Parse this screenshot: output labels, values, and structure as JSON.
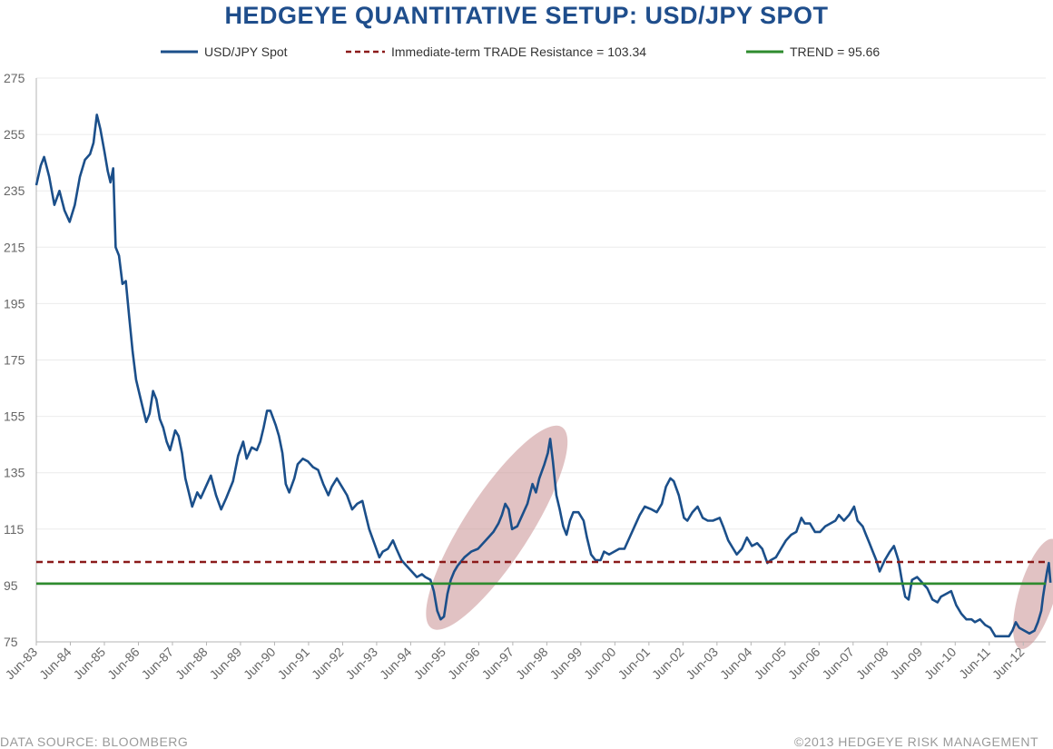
{
  "chart_data": {
    "type": "line",
    "title": "HEDGEYE QUANTITATIVE SETUP: USD/JPY SPOT",
    "xlabel": "",
    "ylabel": "",
    "ylim": [
      75,
      275
    ],
    "y_ticks": [
      75,
      95,
      115,
      135,
      155,
      175,
      195,
      215,
      235,
      255,
      275
    ],
    "x_range": [
      1983.42,
      2013.08
    ],
    "x_tick_labels": [
      "Jun-83",
      "Jun-84",
      "Jun-85",
      "Jun-86",
      "Jun-87",
      "Jun-88",
      "Jun-89",
      "Jun-90",
      "Jun-91",
      "Jun-92",
      "Jun-93",
      "Jun-94",
      "Jun-95",
      "Jun-96",
      "Jun-97",
      "Jun-98",
      "Jun-99",
      "Jun-00",
      "Jun-01",
      "Jun-02",
      "Jun-03",
      "Jun-04",
      "Jun-05",
      "Jun-06",
      "Jun-07",
      "Jun-08",
      "Jun-09",
      "Jun-10",
      "Jun-11",
      "Jun-12"
    ],
    "grid": true,
    "legend_position": "top",
    "series": [
      {
        "name": "USD/JPY Spot",
        "color": "#1b4f8a",
        "style": "solid",
        "points": [
          [
            1983.42,
            237
          ],
          [
            1983.55,
            244
          ],
          [
            1983.65,
            247
          ],
          [
            1983.8,
            240
          ],
          [
            1983.95,
            230
          ],
          [
            1984.1,
            235
          ],
          [
            1984.25,
            228
          ],
          [
            1984.4,
            224
          ],
          [
            1984.55,
            230
          ],
          [
            1984.7,
            240
          ],
          [
            1984.85,
            246
          ],
          [
            1985.0,
            248
          ],
          [
            1985.1,
            252
          ],
          [
            1985.2,
            262
          ],
          [
            1985.3,
            257
          ],
          [
            1985.42,
            249
          ],
          [
            1985.52,
            242
          ],
          [
            1985.6,
            238
          ],
          [
            1985.68,
            243
          ],
          [
            1985.75,
            215
          ],
          [
            1985.85,
            212
          ],
          [
            1985.95,
            202
          ],
          [
            1986.05,
            203
          ],
          [
            1986.15,
            190
          ],
          [
            1986.25,
            178
          ],
          [
            1986.35,
            168
          ],
          [
            1986.45,
            163
          ],
          [
            1986.55,
            158
          ],
          [
            1986.65,
            153
          ],
          [
            1986.75,
            156
          ],
          [
            1986.85,
            164
          ],
          [
            1986.95,
            161
          ],
          [
            1987.05,
            154
          ],
          [
            1987.15,
            151
          ],
          [
            1987.25,
            146
          ],
          [
            1987.35,
            143
          ],
          [
            1987.5,
            150
          ],
          [
            1987.6,
            148
          ],
          [
            1987.7,
            142
          ],
          [
            1987.8,
            133
          ],
          [
            1987.9,
            128
          ],
          [
            1988.0,
            123
          ],
          [
            1988.15,
            128
          ],
          [
            1988.25,
            126
          ],
          [
            1988.4,
            130
          ],
          [
            1988.55,
            134
          ],
          [
            1988.7,
            127
          ],
          [
            1988.85,
            122
          ],
          [
            1989.0,
            126
          ],
          [
            1989.2,
            132
          ],
          [
            1989.35,
            141
          ],
          [
            1989.5,
            146
          ],
          [
            1989.6,
            140
          ],
          [
            1989.75,
            144
          ],
          [
            1989.9,
            143
          ],
          [
            1990.0,
            146
          ],
          [
            1990.1,
            151
          ],
          [
            1990.2,
            157
          ],
          [
            1990.3,
            157
          ],
          [
            1990.45,
            152
          ],
          [
            1990.55,
            148
          ],
          [
            1990.65,
            142
          ],
          [
            1990.75,
            131
          ],
          [
            1990.85,
            128
          ],
          [
            1991.0,
            133
          ],
          [
            1991.1,
            138
          ],
          [
            1991.25,
            140
          ],
          [
            1991.4,
            139
          ],
          [
            1991.55,
            137
          ],
          [
            1991.7,
            136
          ],
          [
            1991.85,
            131
          ],
          [
            1992.0,
            127
          ],
          [
            1992.1,
            130
          ],
          [
            1992.25,
            133
          ],
          [
            1992.4,
            130
          ],
          [
            1992.55,
            127
          ],
          [
            1992.7,
            122
          ],
          [
            1992.85,
            124
          ],
          [
            1993.0,
            125
          ],
          [
            1993.1,
            120
          ],
          [
            1993.2,
            115
          ],
          [
            1993.35,
            110
          ],
          [
            1993.5,
            105
          ],
          [
            1993.6,
            107
          ],
          [
            1993.75,
            108
          ],
          [
            1993.9,
            111
          ],
          [
            1994.0,
            108
          ],
          [
            1994.15,
            104
          ],
          [
            1994.3,
            102
          ],
          [
            1994.45,
            100
          ],
          [
            1994.6,
            98
          ],
          [
            1994.75,
            99
          ],
          [
            1994.85,
            98
          ],
          [
            1995.0,
            97
          ],
          [
            1995.1,
            93
          ],
          [
            1995.2,
            86
          ],
          [
            1995.3,
            83
          ],
          [
            1995.4,
            84
          ],
          [
            1995.5,
            92
          ],
          [
            1995.6,
            97
          ],
          [
            1995.7,
            100
          ],
          [
            1995.8,
            102
          ],
          [
            1996.0,
            105
          ],
          [
            1996.2,
            107
          ],
          [
            1996.4,
            108
          ],
          [
            1996.55,
            110
          ],
          [
            1996.7,
            112
          ],
          [
            1996.85,
            114
          ],
          [
            1997.0,
            117
          ],
          [
            1997.1,
            120
          ],
          [
            1997.2,
            124
          ],
          [
            1997.3,
            122
          ],
          [
            1997.4,
            115
          ],
          [
            1997.55,
            116
          ],
          [
            1997.7,
            120
          ],
          [
            1997.85,
            124
          ],
          [
            1998.0,
            131
          ],
          [
            1998.1,
            128
          ],
          [
            1998.2,
            133
          ],
          [
            1998.35,
            138
          ],
          [
            1998.45,
            142
          ],
          [
            1998.52,
            147
          ],
          [
            1998.6,
            139
          ],
          [
            1998.7,
            127
          ],
          [
            1998.8,
            122
          ],
          [
            1998.9,
            116
          ],
          [
            1999.0,
            113
          ],
          [
            1999.1,
            118
          ],
          [
            1999.2,
            121
          ],
          [
            1999.35,
            121
          ],
          [
            1999.5,
            118
          ],
          [
            1999.6,
            112
          ],
          [
            1999.72,
            106
          ],
          [
            1999.85,
            104
          ],
          [
            2000.0,
            104
          ],
          [
            2000.1,
            107
          ],
          [
            2000.25,
            106
          ],
          [
            2000.4,
            107
          ],
          [
            2000.55,
            108
          ],
          [
            2000.7,
            108
          ],
          [
            2000.85,
            112
          ],
          [
            2001.0,
            116
          ],
          [
            2001.15,
            120
          ],
          [
            2001.3,
            123
          ],
          [
            2001.5,
            122
          ],
          [
            2001.65,
            121
          ],
          [
            2001.8,
            124
          ],
          [
            2001.92,
            130
          ],
          [
            2002.05,
            133
          ],
          [
            2002.15,
            132
          ],
          [
            2002.3,
            127
          ],
          [
            2002.45,
            119
          ],
          [
            2002.55,
            118
          ],
          [
            2002.7,
            121
          ],
          [
            2002.85,
            123
          ],
          [
            2003.0,
            119
          ],
          [
            2003.15,
            118
          ],
          [
            2003.3,
            118
          ],
          [
            2003.5,
            119
          ],
          [
            2003.6,
            116
          ],
          [
            2003.75,
            111
          ],
          [
            2003.9,
            108
          ],
          [
            2004.0,
            106
          ],
          [
            2004.15,
            108
          ],
          [
            2004.3,
            112
          ],
          [
            2004.45,
            109
          ],
          [
            2004.6,
            110
          ],
          [
            2004.75,
            108
          ],
          [
            2004.9,
            103
          ],
          [
            2005.0,
            104
          ],
          [
            2005.15,
            105
          ],
          [
            2005.3,
            108
          ],
          [
            2005.45,
            111
          ],
          [
            2005.6,
            113
          ],
          [
            2005.75,
            114
          ],
          [
            2005.9,
            119
          ],
          [
            2006.0,
            117
          ],
          [
            2006.15,
            117
          ],
          [
            2006.3,
            114
          ],
          [
            2006.45,
            114
          ],
          [
            2006.6,
            116
          ],
          [
            2006.75,
            117
          ],
          [
            2006.9,
            118
          ],
          [
            2007.0,
            120
          ],
          [
            2007.15,
            118
          ],
          [
            2007.3,
            120
          ],
          [
            2007.45,
            123
          ],
          [
            2007.55,
            118
          ],
          [
            2007.7,
            116
          ],
          [
            2007.8,
            113
          ],
          [
            2007.9,
            110
          ],
          [
            2008.0,
            107
          ],
          [
            2008.1,
            104
          ],
          [
            2008.2,
            100
          ],
          [
            2008.35,
            104
          ],
          [
            2008.5,
            107
          ],
          [
            2008.62,
            109
          ],
          [
            2008.75,
            104
          ],
          [
            2008.85,
            97
          ],
          [
            2008.95,
            91
          ],
          [
            2009.05,
            90
          ],
          [
            2009.15,
            97
          ],
          [
            2009.3,
            98
          ],
          [
            2009.45,
            96
          ],
          [
            2009.6,
            94
          ],
          [
            2009.75,
            90
          ],
          [
            2009.9,
            89
          ],
          [
            2010.0,
            91
          ],
          [
            2010.15,
            92
          ],
          [
            2010.3,
            93
          ],
          [
            2010.45,
            88
          ],
          [
            2010.6,
            85
          ],
          [
            2010.75,
            83
          ],
          [
            2010.9,
            83
          ],
          [
            2011.0,
            82
          ],
          [
            2011.15,
            83
          ],
          [
            2011.3,
            81
          ],
          [
            2011.45,
            80
          ],
          [
            2011.6,
            77
          ],
          [
            2011.75,
            77
          ],
          [
            2011.9,
            77
          ],
          [
            2012.0,
            77
          ],
          [
            2012.1,
            79
          ],
          [
            2012.2,
            82
          ],
          [
            2012.3,
            80
          ],
          [
            2012.45,
            79
          ],
          [
            2012.6,
            78
          ],
          [
            2012.75,
            79
          ],
          [
            2012.85,
            82
          ],
          [
            2012.95,
            86
          ],
          [
            2013.0,
            91
          ],
          [
            2013.05,
            95
          ],
          [
            2013.12,
            100
          ],
          [
            2013.17,
            103
          ],
          [
            2013.22,
            96
          ]
        ]
      },
      {
        "name": "Immediate-term TRADE Resistance = 103.34",
        "color": "#8b1a1a",
        "style": "dashed",
        "value": 103.34
      },
      {
        "name": "TRend = 95.66",
        "color": "#2e8b2e",
        "style": "solid",
        "value": 95.66
      }
    ],
    "annotations": [
      {
        "type": "ellipse-highlight",
        "color": "#c98f92",
        "from": [
          1995.15,
          82
        ],
        "to": [
          1998.75,
          149
        ]
      },
      {
        "type": "ellipse-highlight",
        "color": "#c98f92",
        "from": [
          2012.4,
          75
        ],
        "to": [
          2013.25,
          109
        ]
      }
    ]
  },
  "legend": {
    "spot_label": "USD/JPY Spot",
    "resistance_label": "Immediate-term TRADE Resistance = 103.34",
    "trend_label": "TREND = 95.66"
  },
  "footer": {
    "source": "DATA SOURCE:  BLOOMBERG",
    "copyright": "©2013 HEDGEYE RISK MANAGEMENT"
  }
}
